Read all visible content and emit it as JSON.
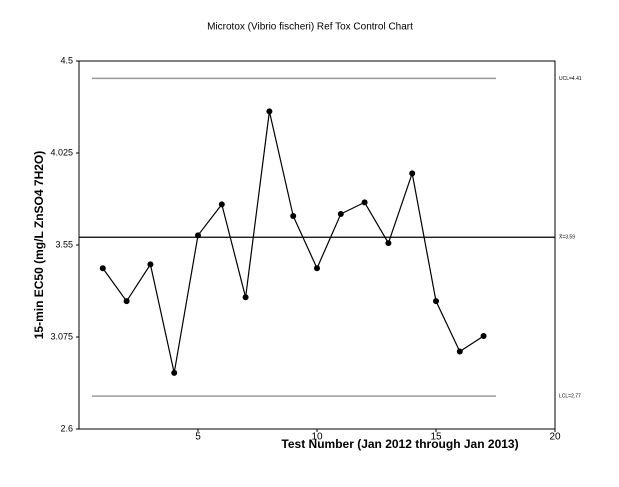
{
  "chart_data": {
    "type": "line",
    "title": "Microtox (Vibrio fischeri) Ref Tox Control Chart",
    "x_label": "Test Number (Jan 2012 through Jan 2013)",
    "y_label": "15-min EC50 (mg/L ZnSO4 7H2O)",
    "x": [
      1,
      2,
      3,
      4,
      5,
      6,
      7,
      8,
      9,
      10,
      11,
      12,
      13,
      14,
      15,
      16,
      17
    ],
    "values": [
      3.43,
      3.26,
      3.45,
      2.89,
      3.6,
      3.76,
      3.28,
      4.24,
      3.7,
      3.43,
      3.71,
      3.77,
      3.56,
      3.92,
      3.26,
      3.0,
      3.08
    ],
    "color": "#000000",
    "xlim": [
      0,
      20
    ],
    "xticks": [
      5,
      10,
      15,
      20
    ],
    "ylim": [
      2.6,
      4.5
    ],
    "yticks": [
      4.5,
      4.025,
      3.55,
      3.075,
      2.6
    ],
    "reference_lines": [
      {
        "value": 4.41,
        "label": "UCL=4.41",
        "color": "#999999"
      },
      {
        "value": 3.59,
        "label": "X̄=3.59",
        "color": "#000000"
      },
      {
        "value": 2.77,
        "label": "LCL=2.77",
        "color": "#999999"
      }
    ]
  }
}
